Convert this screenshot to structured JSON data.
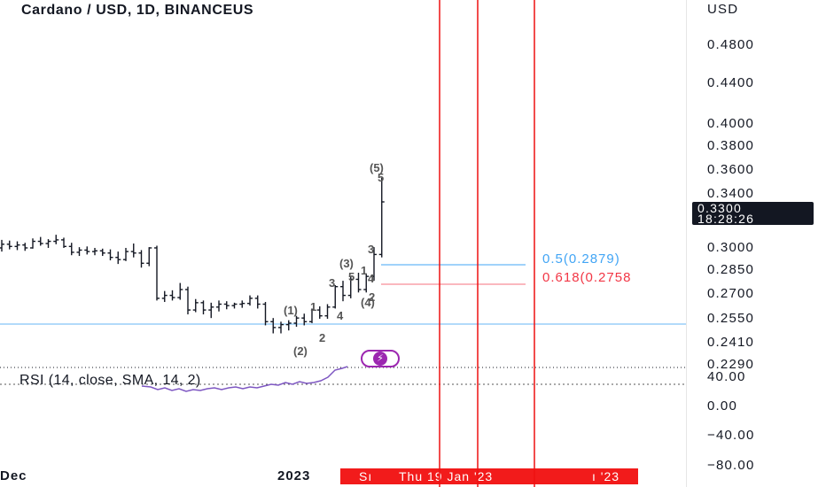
{
  "header": {
    "title": "Cardano / USD, 1D, BINANCEUS"
  },
  "price_axis": {
    "currency": "USD",
    "labels": [
      "0.4800",
      "0.4400",
      "0.4000",
      "0.3800",
      "0.3600",
      "0.3400",
      "0.3000",
      "0.2850",
      "0.2700",
      "0.2550",
      "0.2410",
      "0.2290"
    ],
    "current_price": "0.3300",
    "countdown": "18:28:26"
  },
  "rsi_axis": {
    "labels": [
      "40.00",
      "0.00",
      "−40.00",
      "−80.00"
    ]
  },
  "rsi": {
    "label": "RSI (14, close, SMA, 14, 2)"
  },
  "time_axis": {
    "left_label": "Dec",
    "year_label": "2023",
    "highlight_a": "Sı",
    "highlight_b": "Thu 19 Jan '23",
    "highlight_c": "ı '23"
  },
  "fibonacci": {
    "level_05": "0.5(0.2879)",
    "level_0618": "0.618(0.2758"
  },
  "wave_labels": {
    "w5_paren": "(5)",
    "w5": "5",
    "w3_paren": "(3)",
    "w3": "3",
    "w3_top": "3",
    "w1_paren": "(1)",
    "w1": "1",
    "w2_paren": "(2)",
    "w2": "2",
    "w4_paren": "(4)",
    "w4": "4",
    "sub_5": "5",
    "sub_4": "4",
    "sub_1": "1",
    "sub_2": "2"
  },
  "colors": {
    "accent_purple": "#9c27b0",
    "fib_05": "#42a5f5",
    "fib_0618": "#f23645",
    "vertical_lines": "#ee1111",
    "horizontal_support": "#64b5f6",
    "bars": "#131722"
  },
  "chart_data": {
    "type": "ohlc",
    "ohlc": [
      [
        0.2985,
        0.304,
        0.296,
        0.301
      ],
      [
        0.301,
        0.3035,
        0.2975,
        0.2995
      ],
      [
        0.2995,
        0.303,
        0.297,
        0.3005
      ],
      [
        0.3005,
        0.302,
        0.2965,
        0.2985
      ],
      [
        0.2985,
        0.305,
        0.298,
        0.303
      ],
      [
        0.303,
        0.306,
        0.3,
        0.3015
      ],
      [
        0.3015,
        0.3045,
        0.2985,
        0.303
      ],
      [
        0.303,
        0.3075,
        0.301,
        0.304
      ],
      [
        0.304,
        0.3055,
        0.2985,
        0.2995
      ],
      [
        0.2995,
        0.302,
        0.2935,
        0.2955
      ],
      [
        0.2955,
        0.299,
        0.293,
        0.297
      ],
      [
        0.297,
        0.2995,
        0.294,
        0.296
      ],
      [
        0.296,
        0.2985,
        0.2935,
        0.2965
      ],
      [
        0.2965,
        0.298,
        0.293,
        0.295
      ],
      [
        0.295,
        0.2975,
        0.29,
        0.292
      ],
      [
        0.292,
        0.296,
        0.2875,
        0.2905
      ],
      [
        0.2905,
        0.2985,
        0.2895,
        0.296
      ],
      [
        0.296,
        0.3015,
        0.292,
        0.295
      ],
      [
        0.295,
        0.297,
        0.285,
        0.288
      ],
      [
        0.288,
        0.299,
        0.286,
        0.2985
      ],
      [
        0.2985,
        0.3,
        0.2625,
        0.264
      ],
      [
        0.264,
        0.269,
        0.2615,
        0.266
      ],
      [
        0.266,
        0.2695,
        0.2625,
        0.2645
      ],
      [
        0.2645,
        0.2745,
        0.263,
        0.27
      ],
      [
        0.27,
        0.272,
        0.253,
        0.256
      ],
      [
        0.256,
        0.2635,
        0.2545,
        0.261
      ],
      [
        0.261,
        0.2625,
        0.253,
        0.256
      ],
      [
        0.256,
        0.261,
        0.2505,
        0.258
      ],
      [
        0.258,
        0.2625,
        0.255,
        0.26
      ],
      [
        0.26,
        0.262,
        0.2565,
        0.259
      ],
      [
        0.259,
        0.261,
        0.257,
        0.26
      ],
      [
        0.26,
        0.2625,
        0.2575,
        0.2605
      ],
      [
        0.2605,
        0.266,
        0.259,
        0.264
      ],
      [
        0.264,
        0.266,
        0.257,
        0.26
      ],
      [
        0.26,
        0.2615,
        0.2455,
        0.248
      ],
      [
        0.248,
        0.2505,
        0.24,
        0.244
      ],
      [
        0.244,
        0.248,
        0.24,
        0.246
      ],
      [
        0.246,
        0.249,
        0.242,
        0.247
      ],
      [
        0.247,
        0.252,
        0.2445,
        0.2505
      ],
      [
        0.2505,
        0.2535,
        0.2455,
        0.248
      ],
      [
        0.248,
        0.257,
        0.247,
        0.256
      ],
      [
        0.256,
        0.2585,
        0.25,
        0.252
      ],
      [
        0.252,
        0.26,
        0.25,
        0.258
      ],
      [
        0.258,
        0.273,
        0.257,
        0.272
      ],
      [
        0.272,
        0.276,
        0.262,
        0.266
      ],
      [
        0.266,
        0.279,
        0.264,
        0.277
      ],
      [
        0.277,
        0.2815,
        0.268,
        0.27
      ],
      [
        0.27,
        0.281,
        0.268,
        0.279
      ],
      [
        0.279,
        0.299,
        0.276,
        0.294
      ],
      [
        0.294,
        0.3465,
        0.292,
        0.33
      ]
    ]
  }
}
